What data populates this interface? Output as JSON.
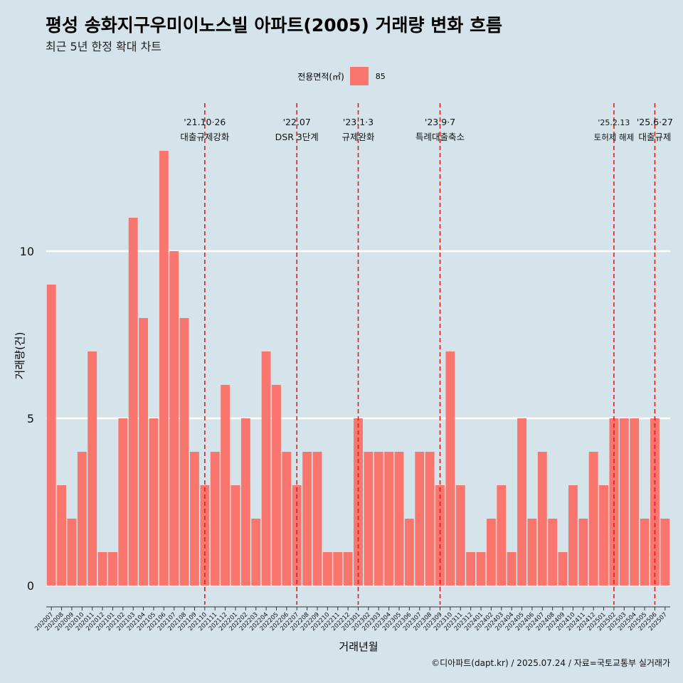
{
  "title": "평성 송화지구우미이노스빌 아파트(2005) 거래량 변화 흐름",
  "subtitle": "최근 5년 한정 확대 차트",
  "caption": "©디아파트(dapt.kr) / 2025.07.24 / 자료=국토교통부 실거래가",
  "legend": {
    "title": "전용면적(㎡)",
    "entries": [
      "85"
    ]
  },
  "colors": {
    "background": "#d5e4eb",
    "bar": "#f8766d",
    "event_line": "#e41a1c",
    "grid": "#ffffff"
  },
  "chart_data": {
    "type": "bar",
    "xlabel": "거래년월",
    "ylabel": "거래량(건)",
    "ylim": [
      0,
      14
    ],
    "yticks": [
      0,
      5,
      10
    ],
    "grid": true,
    "legend_position": "top",
    "categories": [
      "202007",
      "202008",
      "202009",
      "202010",
      "202011",
      "202012",
      "202101",
      "202102",
      "202103",
      "202104",
      "202105",
      "202106",
      "202107",
      "202108",
      "202109",
      "202110",
      "202111",
      "202112",
      "202201",
      "202202",
      "202203",
      "202204",
      "202205",
      "202206",
      "202207",
      "202208",
      "202209",
      "202210",
      "202211",
      "202212",
      "202301",
      "202302",
      "202303",
      "202304",
      "202305",
      "202306",
      "202307",
      "202308",
      "202309",
      "202310",
      "202311",
      "202312",
      "202401",
      "202402",
      "202403",
      "202404",
      "202405",
      "202406",
      "202407",
      "202408",
      "202409",
      "202410",
      "202411",
      "202412",
      "202501",
      "202502",
      "202503",
      "202504",
      "202505",
      "202506",
      "202507"
    ],
    "series": [
      {
        "name": "85",
        "values": [
          9,
          3,
          2,
          4,
          7,
          1,
          1,
          5,
          11,
          8,
          5,
          13,
          10,
          8,
          4,
          3,
          4,
          6,
          3,
          5,
          2,
          7,
          6,
          4,
          3,
          4,
          4,
          1,
          1,
          1,
          5,
          4,
          4,
          4,
          4,
          2,
          4,
          4,
          3,
          7,
          3,
          1,
          1,
          2,
          3,
          1,
          5,
          2,
          4,
          2,
          1,
          3,
          2,
          4,
          3,
          5,
          5,
          5,
          2,
          5,
          2
        ]
      }
    ],
    "annotations": [
      {
        "x": "202110",
        "date": "'21.10·26",
        "label": "대출규제강화"
      },
      {
        "x": "202207",
        "date": "'22.07",
        "label": "DSR 3단계"
      },
      {
        "x": "202301",
        "date": "'23.1·3",
        "label": "규제완화"
      },
      {
        "x": "202309",
        "date": "'23.9·7",
        "label": "특례대출축소"
      },
      {
        "x": "202502",
        "date": "'25.2.13",
        "label": "토허제 해제"
      },
      {
        "x": "202506",
        "date": "'25.6·27",
        "label": "대출규제"
      }
    ]
  }
}
